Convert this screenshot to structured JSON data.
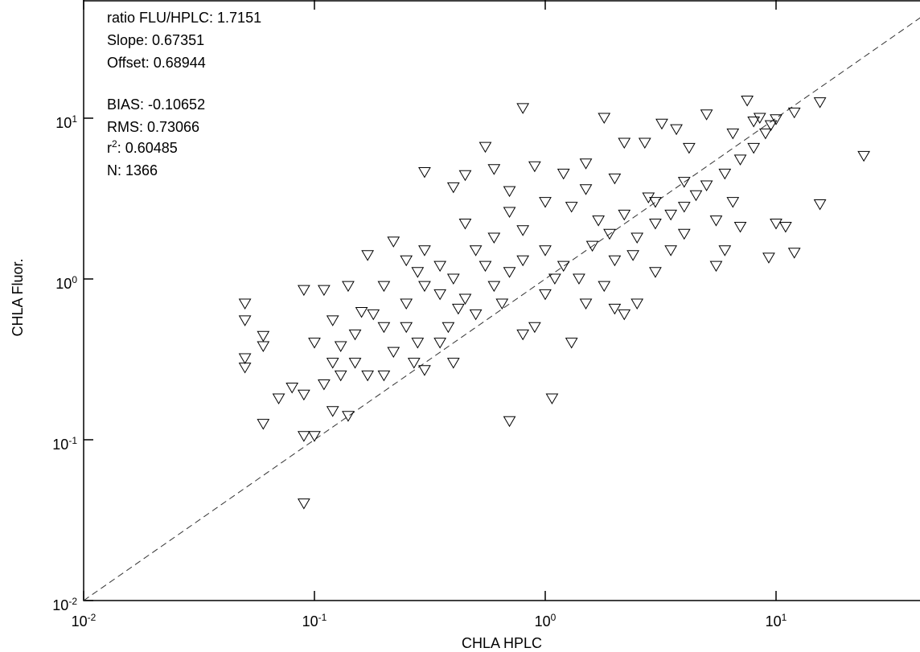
{
  "chart_data": {
    "type": "scatter",
    "x_label": "CHLA HPLC",
    "y_label": "CHLA Fluor.",
    "annotations": [
      "ratio FLU/HPLC: 1.7151",
      "Slope: 0.67351",
      "Offset: 0.68944",
      "BIAS: -0.10652",
      "RMS: 0.73066",
      [
        "r",
        "2",
        ": 0.60485"
      ],
      "N: 1366"
    ],
    "xscale": "log",
    "yscale": "log",
    "xlim": [
      0.01,
      100
    ],
    "ylim": [
      0.01,
      100
    ],
    "xticks": [
      {
        "value": 0.01,
        "label": "10",
        "sup": "-2"
      },
      {
        "value": 0.1,
        "label": "10",
        "sup": "-1"
      },
      {
        "value": 1,
        "label": "10",
        "sup": "0"
      },
      {
        "value": 10,
        "label": "10",
        "sup": "1"
      }
    ],
    "yticks": [
      {
        "value": 0.01,
        "label": "10",
        "sup": "-2"
      },
      {
        "value": 0.1,
        "label": "10",
        "sup": "-1"
      },
      {
        "value": 1,
        "label": "10",
        "sup": "0"
      },
      {
        "value": 10,
        "label": "10",
        "sup": "1"
      }
    ],
    "identity_line": true,
    "marker": "triangle-down",
    "x": [
      0.09,
      0.06,
      0.7,
      1.07,
      0.05,
      0.05,
      0.05,
      0.05,
      0.09,
      0.1,
      0.06,
      0.06,
      0.07,
      0.08,
      0.09,
      0.11,
      0.12,
      0.14,
      0.13,
      0.17,
      0.09,
      0.11,
      0.14,
      0.12,
      0.1,
      0.15,
      0.18,
      0.2,
      0.17,
      0.22,
      0.25,
      0.28,
      0.3,
      0.3,
      0.4,
      0.55,
      0.8,
      1.8,
      0.45,
      0.6,
      0.7,
      0.9,
      1.2,
      1.5,
      2.2,
      2.7,
      3.2,
      3.7,
      4.2,
      5,
      7.5,
      8.5,
      10,
      12,
      15.5,
      24,
      15.5,
      12,
      9.3,
      10,
      11,
      6,
      5.5,
      7,
      0.35,
      0.4,
      0.3,
      0.27,
      1.3,
      0.9,
      0.8,
      1,
      1.5,
      2,
      2.5,
      2.2,
      1.8,
      0.5,
      0.45,
      0.6,
      0.7,
      0.55,
      0.4,
      0.35,
      0.25,
      0.2,
      0.22,
      0.15,
      0.12,
      0.13,
      0.5,
      0.6,
      0.8,
      1.0,
      1.2,
      1.4,
      1.6,
      2,
      2.5,
      3,
      3.5,
      4,
      4.5,
      5,
      6,
      7,
      8,
      9,
      3,
      3.5,
      4,
      2.8,
      2.2,
      1.7,
      1.3,
      1,
      0.8,
      0.65,
      0.35,
      0.3,
      0.45,
      0.7,
      1.1,
      1.9,
      2.4,
      5.5,
      6.5,
      0.2,
      0.25,
      0.28,
      0.16,
      0.38,
      0.42,
      1.5,
      2,
      8,
      9.5,
      6.5,
      4,
      3
    ],
    "series": [
      {
        "color": "#000000",
        "values": [
          0.04,
          0.125,
          0.13,
          0.18,
          0.7,
          0.55,
          0.32,
          0.28,
          0.105,
          0.105,
          0.44,
          0.38,
          0.18,
          0.21,
          0.19,
          0.22,
          0.15,
          0.14,
          0.25,
          0.25,
          0.85,
          0.85,
          0.9,
          0.55,
          0.4,
          0.45,
          0.6,
          0.5,
          1.4,
          1.7,
          1.3,
          1.1,
          0.9,
          4.6,
          3.7,
          6.6,
          11.5,
          10,
          4.4,
          4.8,
          3.5,
          5,
          4.5,
          5.2,
          7,
          7,
          9.2,
          8.5,
          6.5,
          10.5,
          12.8,
          10,
          9.8,
          10.8,
          12.5,
          5.8,
          2.9,
          1.45,
          1.35,
          2.2,
          2.1,
          1.5,
          1.2,
          2.1,
          0.4,
          0.3,
          0.27,
          0.3,
          0.4,
          0.5,
          0.45,
          0.8,
          0.7,
          0.65,
          0.7,
          0.6,
          0.9,
          0.6,
          0.75,
          0.9,
          1.1,
          1.2,
          1.0,
          0.8,
          0.7,
          0.9,
          0.35,
          0.3,
          0.3,
          0.38,
          1.5,
          1.8,
          2.0,
          1.5,
          1.2,
          1.0,
          1.6,
          1.3,
          1.8,
          2.2,
          2.5,
          2.8,
          3.3,
          3.8,
          4.5,
          5.5,
          6.5,
          8,
          1.1,
          1.5,
          1.9,
          3.2,
          2.5,
          2.3,
          2.8,
          3,
          1.3,
          0.7,
          1.2,
          1.5,
          2.2,
          2.6,
          1.0,
          1.9,
          1.4,
          2.3,
          3,
          0.25,
          0.5,
          0.4,
          0.62,
          0.5,
          0.65,
          3.6,
          4.2,
          9.5,
          9,
          8,
          4,
          3
        ]
      }
    ]
  }
}
